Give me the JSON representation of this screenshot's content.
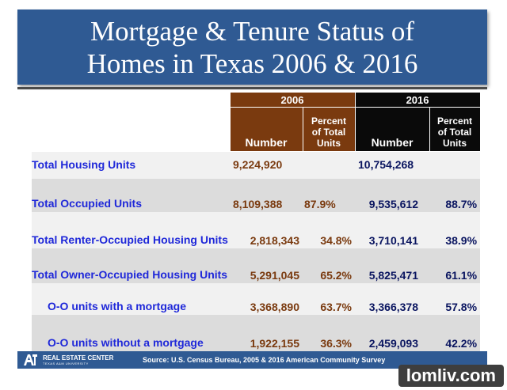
{
  "title": {
    "line1": "Mortgage & Tenure Status of",
    "line2": "Homes in Texas 2006 & 2016"
  },
  "table": {
    "years": [
      "2006",
      "2016"
    ],
    "columns": {
      "number": "Number",
      "percent_line1": "Percent",
      "percent_line2": "of Total",
      "percent_line3": "Units"
    },
    "rows": [
      {
        "label": "Total Housing Units",
        "n2006": "9,224,920",
        "p2006": "",
        "n2016": "10,754,268",
        "p2016": ""
      },
      {
        "label": "Total Occupied Units",
        "n2006": "8,109,388",
        "p2006": "87.9%",
        "n2016": "9,535,612",
        "p2016": "88.7%"
      },
      {
        "label": "Total Renter-Occupied Housing Units",
        "n2006": "2,818,343",
        "p2006": "34.8%",
        "n2016": "3,710,141",
        "p2016": "38.9%"
      },
      {
        "label": "Total Owner-Occupied Housing Units",
        "n2006": "5,291,045",
        "p2006": "65.2%",
        "n2016": "5,825,471",
        "p2016": "61.1%"
      },
      {
        "label": "O-O units with a mortgage",
        "n2006": "3,368,890",
        "p2006": "63.7%",
        "n2016": "3,366,378",
        "p2016": "57.8%"
      },
      {
        "label": "O-O units without a mortgage",
        "n2006": "1,922,155",
        "p2006": "36.3%",
        "n2016": "2,459,093",
        "p2016": "42.2%"
      }
    ]
  },
  "footer": {
    "logo_main": "REAL ESTATE CENTER",
    "logo_sub": "TEXAS A&M UNIVERSITY",
    "source": "Source: U.S. Census Bureau, 2005 & 2016 American Community Survey"
  },
  "watermark": "lomliv.com",
  "colors": {
    "title_bg": "#2f5a93",
    "year2006": "#7a3a0f",
    "year2016": "#0a0a0a",
    "label_text": "#1f28d9"
  }
}
